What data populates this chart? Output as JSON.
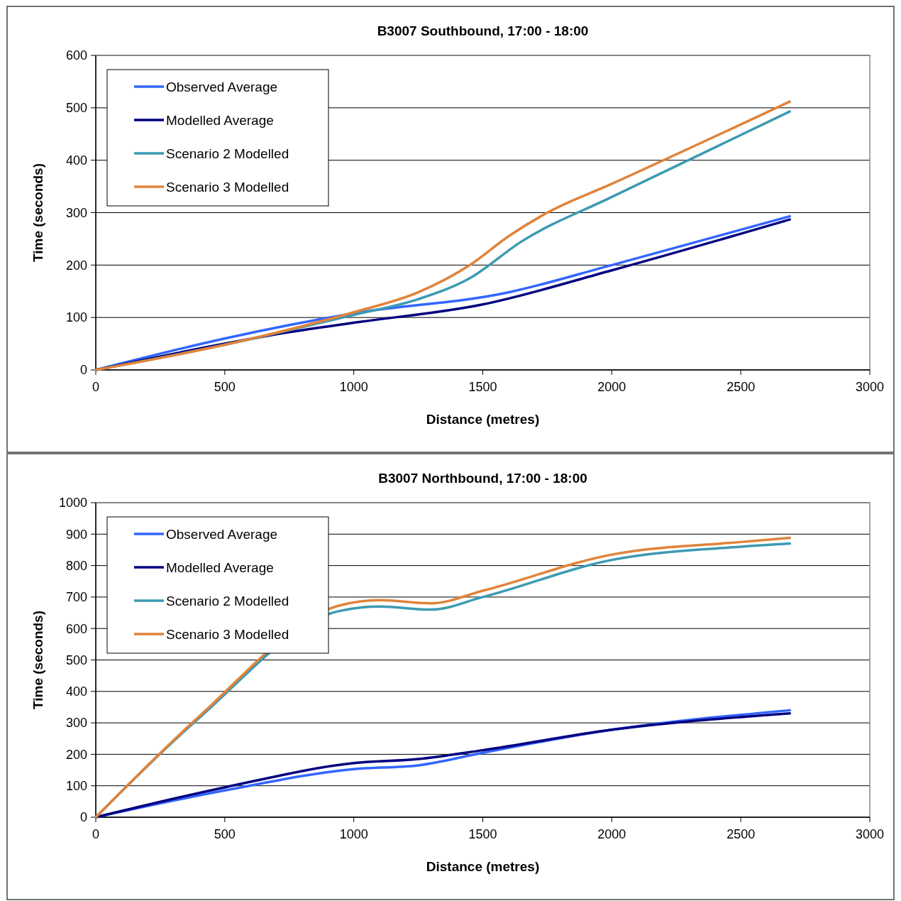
{
  "chart_data": [
    {
      "type": "line",
      "title": "B3007 Southbound, 17:00 - 18:00",
      "xlabel": "Distance (metres)",
      "ylabel": "Time (seconds)",
      "xlim": [
        0,
        3000
      ],
      "xticks": [
        0,
        500,
        1000,
        1500,
        2000,
        2500,
        3000
      ],
      "ylim": [
        0,
        600
      ],
      "yticks": [
        0,
        100,
        200,
        300,
        400,
        500,
        600
      ],
      "grid": "y",
      "legend": "top left",
      "series": [
        {
          "name": "Observed Average",
          "color": "#3366ff",
          "x": [
            0,
            500,
            1000,
            1600,
            2000,
            2690
          ],
          "values": [
            0,
            60,
            108,
            148,
            200,
            293
          ]
        },
        {
          "name": "Modelled Average",
          "color": "#000080",
          "x": [
            0,
            500,
            750,
            1000,
            1500,
            2000,
            2690
          ],
          "values": [
            0,
            50,
            72,
            90,
            125,
            190,
            287
          ]
        },
        {
          "name": "Scenario 2 Modelled",
          "color": "#3c9ab2",
          "x": [
            0,
            500,
            1000,
            1250,
            1450,
            1650,
            2000,
            2690
          ],
          "values": [
            0,
            48,
            105,
            135,
            175,
            245,
            330,
            493
          ]
        },
        {
          "name": "Scenario 3 Modelled",
          "color": "#e0833a",
          "x": [
            0,
            500,
            1000,
            1250,
            1450,
            1600,
            1750,
            2000,
            2690
          ],
          "values": [
            0,
            48,
            110,
            148,
            200,
            255,
            300,
            355,
            512
          ]
        }
      ]
    },
    {
      "type": "line",
      "title": "B3007 Northbound, 17:00 - 18:00",
      "xlabel": "Distance (metres)",
      "ylabel": "Time (seconds)",
      "xlim": [
        0,
        3000
      ],
      "xticks": [
        0,
        500,
        1000,
        1500,
        2000,
        2500,
        3000
      ],
      "ylim": [
        0,
        1000
      ],
      "yticks": [
        0,
        100,
        200,
        300,
        400,
        500,
        600,
        700,
        800,
        900,
        1000
      ],
      "grid": "y",
      "legend": "top left",
      "series": [
        {
          "name": "Observed Average",
          "color": "#3366ff",
          "x": [
            0,
            500,
            1000,
            1250,
            1500,
            2000,
            2690
          ],
          "values": [
            0,
            85,
            153,
            165,
            205,
            278,
            340
          ]
        },
        {
          "name": "Modelled Average",
          "color": "#000080",
          "x": [
            0,
            500,
            1000,
            1250,
            1500,
            2000,
            2690
          ],
          "values": [
            0,
            95,
            172,
            185,
            213,
            278,
            330
          ]
        },
        {
          "name": "Scenario 2 Modelled",
          "color": "#3c9ab2",
          "x": [
            0,
            400,
            940,
            1100,
            1300,
            1500,
            2000,
            2500,
            2690
          ],
          "values": [
            0,
            315,
            655,
            670,
            660,
            700,
            818,
            860,
            870
          ]
        },
        {
          "name": "Scenario 3 Modelled",
          "color": "#e0833a",
          "x": [
            0,
            400,
            940,
            1100,
            1300,
            1500,
            2000,
            2500,
            2690
          ],
          "values": [
            0,
            320,
            672,
            690,
            680,
            720,
            835,
            875,
            888
          ]
        }
      ]
    }
  ]
}
